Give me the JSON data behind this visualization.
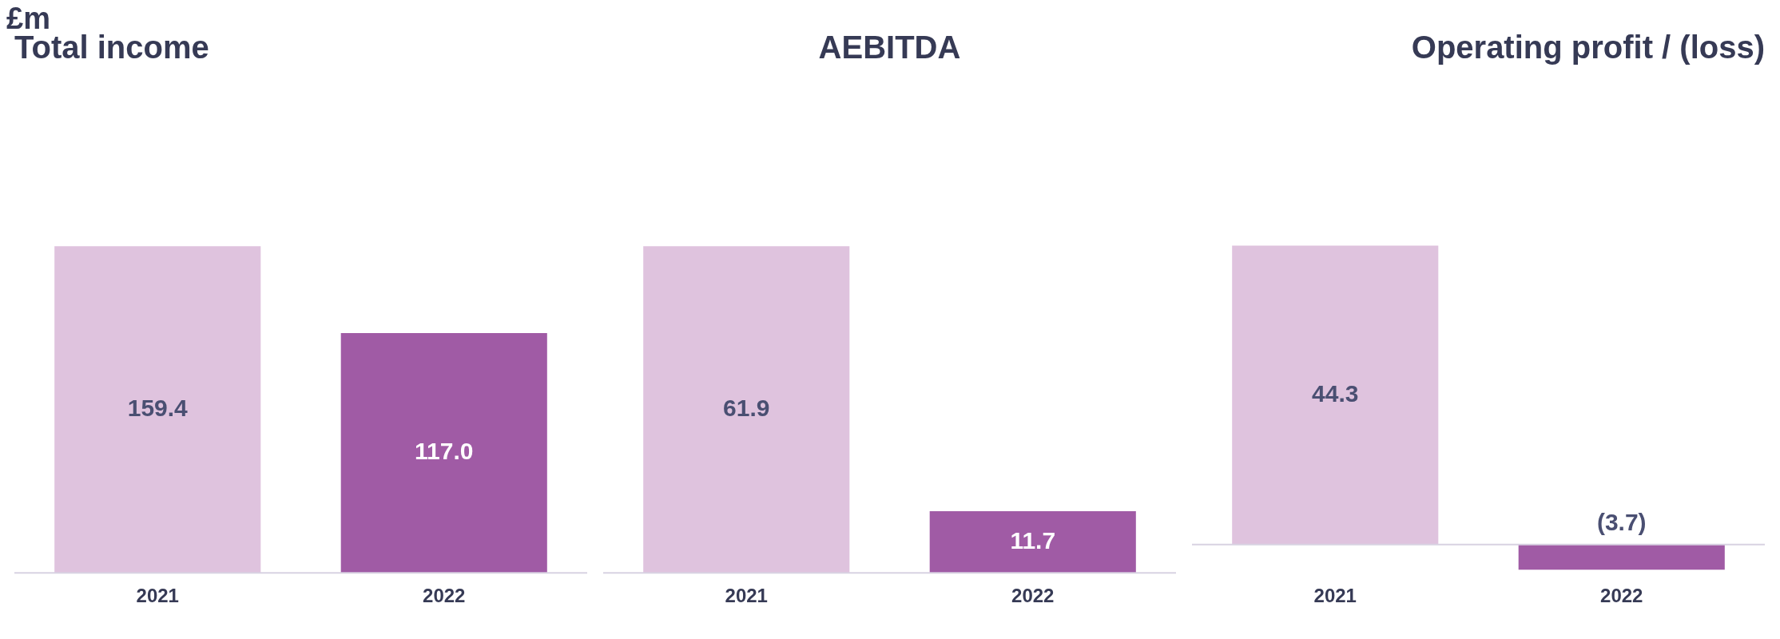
{
  "chart_data": [
    {
      "type": "bar",
      "title": "Total income",
      "annotations": [
        "£m"
      ],
      "categories": [
        "2021",
        "2022"
      ],
      "values": [
        159.4,
        117.0
      ],
      "colors": [
        "#dfc3de",
        "#a05ba5"
      ],
      "value_labels": [
        "159.4",
        "117.0"
      ],
      "grid": false,
      "legend": false,
      "tick_labels": "x"
    },
    {
      "type": "bar",
      "title": "AEBITDA",
      "categories": [
        "2021",
        "2022"
      ],
      "values": [
        61.9,
        11.7
      ],
      "colors": [
        "#dfc3de",
        "#a05ba5"
      ],
      "value_labels": [
        "61.9",
        "11.7"
      ],
      "grid": false,
      "legend": false,
      "tick_labels": "x"
    },
    {
      "type": "bar",
      "title": "Operating profit / (loss)",
      "categories": [
        "2021",
        "2022"
      ],
      "values": [
        44.3,
        -3.7
      ],
      "colors": [
        "#dfc3de",
        "#a05ba5"
      ],
      "value_labels": [
        "44.3",
        "(3.7)"
      ],
      "grid": false,
      "legend": false,
      "tick_labels": "x"
    }
  ]
}
